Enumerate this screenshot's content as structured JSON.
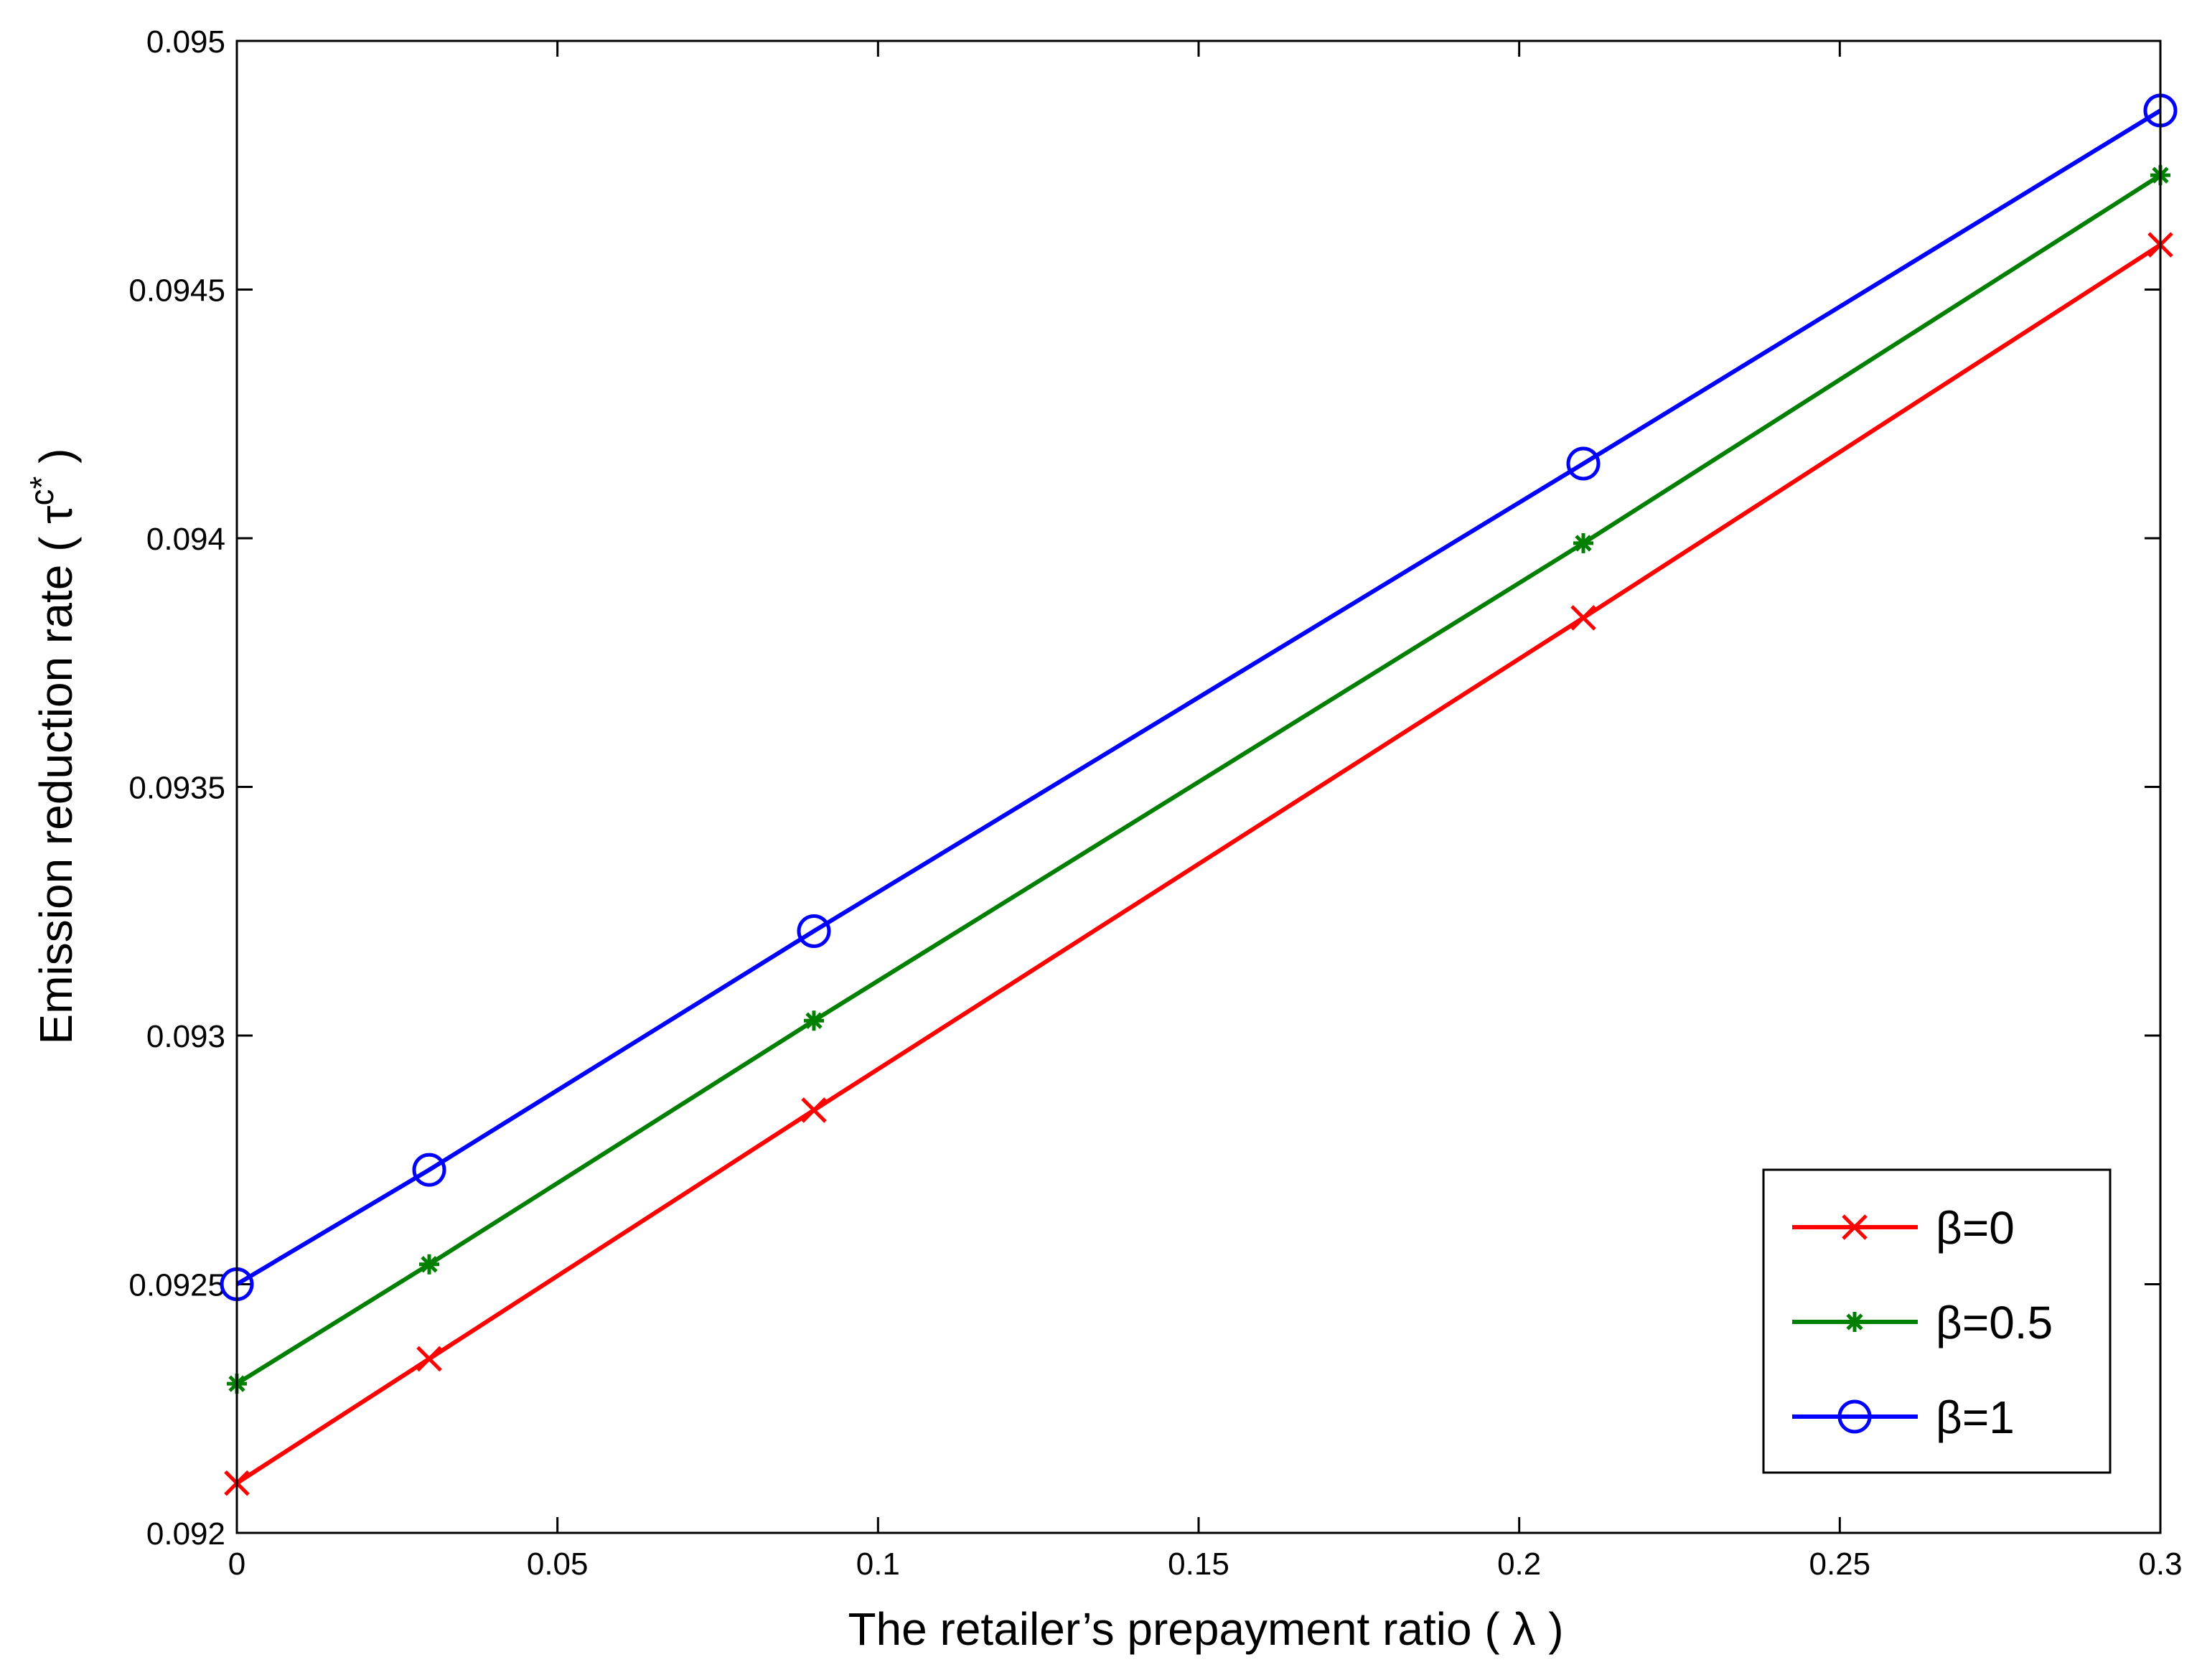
{
  "chart_data": {
    "type": "line",
    "xlabel": "The retailer’s prepayment ratio ( λ )",
    "ylabel_main": "Emission reduction rate ( τ",
    "ylabel_sup": "c*",
    "ylabel_close": " )",
    "x": [
      0,
      0.03,
      0.09,
      0.21,
      0.3
    ],
    "xlim": [
      0,
      0.3
    ],
    "ylim": [
      0.092,
      0.095
    ],
    "xticks": [
      0,
      0.05,
      0.1,
      0.15,
      0.2,
      0.25,
      0.3
    ],
    "xtick_labels": [
      "0",
      "0.05",
      "0.1",
      "0.15",
      "0.2",
      "0.25",
      "0.3"
    ],
    "yticks": [
      0.092,
      0.0925,
      0.093,
      0.0935,
      0.094,
      0.0945,
      0.095
    ],
    "ytick_labels": [
      "0.092",
      "0.0925",
      "0.093",
      "0.0935",
      "0.094",
      "0.0945",
      "0.095"
    ],
    "grid": false,
    "legend_position": "bottom-right",
    "series": [
      {
        "name": "β=0",
        "color": "#ff0000",
        "marker": "x",
        "values": [
          0.0921,
          0.09235,
          0.09285,
          0.09384,
          0.09459
        ]
      },
      {
        "name": "β=0.5",
        "color": "#007f00",
        "marker": "star",
        "values": [
          0.0923,
          0.09254,
          0.09303,
          0.09399,
          0.09473
        ]
      },
      {
        "name": "β=1",
        "color": "#0000ff",
        "marker": "circle",
        "values": [
          0.0925,
          0.09273,
          0.09321,
          0.09415,
          0.09486
        ]
      }
    ]
  }
}
